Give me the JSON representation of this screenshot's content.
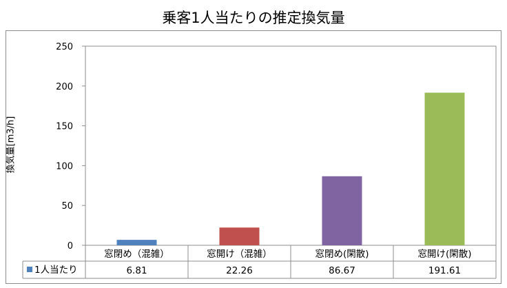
{
  "chart_data": {
    "type": "bar",
    "title": "乗客1人当たりの推定換気量",
    "ylabel": "換気量[m3/h]",
    "xlabel": "",
    "ylim": [
      0,
      250
    ],
    "yticks": [
      0,
      50,
      100,
      150,
      200,
      250
    ],
    "grid": false,
    "legend": "data-table-left",
    "categories": [
      "窓閉め（混雑）",
      "窓開け（混雑）",
      "窓閉め(閑散)",
      "窓開け(閑散)"
    ],
    "series": [
      {
        "name": "1人当たり",
        "values": [
          6.81,
          22.26,
          86.67,
          191.61
        ],
        "value_labels": [
          "6.81",
          "22.26",
          "86.67",
          "191.61"
        ],
        "colors": [
          "#4f81bd",
          "#c0504d",
          "#8064a2",
          "#9bbb59"
        ]
      }
    ]
  }
}
